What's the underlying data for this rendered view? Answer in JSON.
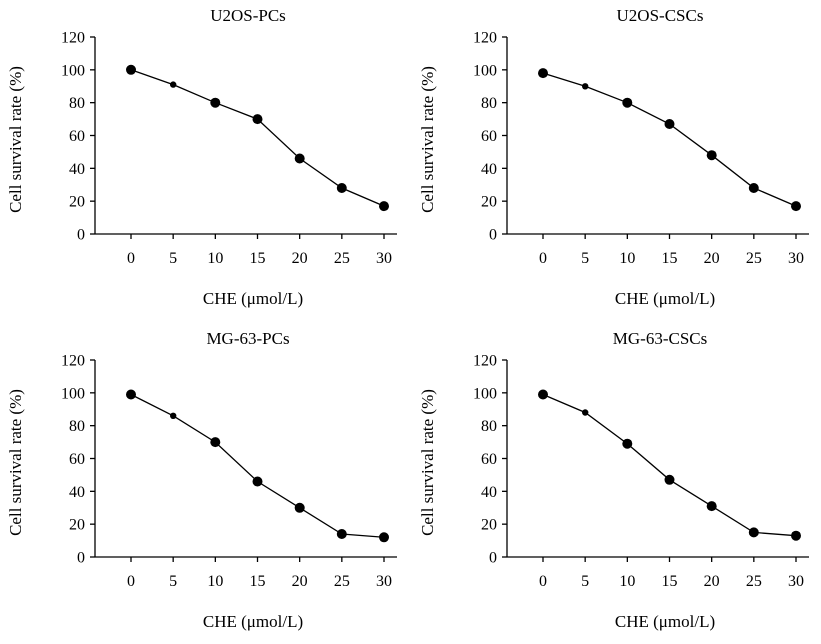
{
  "colors": {
    "line": "#000000",
    "marker": "#000000",
    "background": "#ffffff"
  },
  "chart_data": [
    {
      "type": "line",
      "title": "U2OS-PCs",
      "xlabel": "CHE (μmol/L)",
      "ylabel": "Cell survival rate (%)",
      "x": [
        0,
        5,
        10,
        15,
        20,
        25,
        30
      ],
      "x_ticks": [
        "0",
        "5",
        "10",
        "15",
        "20",
        "25",
        "30"
      ],
      "y": [
        100,
        91,
        80,
        70,
        46,
        28,
        17
      ],
      "y_ticks": [
        "0",
        "20",
        "40",
        "60",
        "80",
        "100",
        "120"
      ],
      "ylim": [
        0,
        120
      ],
      "grid": false
    },
    {
      "type": "line",
      "title": "U2OS-CSCs",
      "xlabel": "CHE (μmol/L)",
      "ylabel": "Cell survival rate (%)",
      "x": [
        0,
        5,
        10,
        15,
        20,
        25,
        30
      ],
      "x_ticks": [
        "0",
        "5",
        "10",
        "15",
        "20",
        "25",
        "30"
      ],
      "y": [
        98,
        90,
        80,
        67,
        48,
        28,
        17
      ],
      "y_ticks": [
        "0",
        "20",
        "40",
        "60",
        "80",
        "100",
        "120"
      ],
      "ylim": [
        0,
        120
      ],
      "grid": false
    },
    {
      "type": "line",
      "title": "MG-63-PCs",
      "xlabel": "CHE (μmol/L)",
      "ylabel": "Cell survival rate (%)",
      "x": [
        0,
        5,
        10,
        15,
        20,
        25,
        30
      ],
      "x_ticks": [
        "0",
        "5",
        "10",
        "15",
        "20",
        "25",
        "30"
      ],
      "y": [
        99,
        86,
        70,
        46,
        30,
        14,
        12
      ],
      "y_ticks": [
        "0",
        "20",
        "40",
        "60",
        "80",
        "100",
        "120"
      ],
      "ylim": [
        0,
        120
      ],
      "grid": false
    },
    {
      "type": "line",
      "title": "MG-63-CSCs",
      "xlabel": "CHE (μmol/L)",
      "ylabel": "Cell survival rate (%)",
      "x": [
        0,
        5,
        10,
        15,
        20,
        25,
        30
      ],
      "x_ticks": [
        "0",
        "5",
        "10",
        "15",
        "20",
        "25",
        "30"
      ],
      "y": [
        99,
        88,
        69,
        47,
        31,
        15,
        13
      ],
      "y_ticks": [
        "0",
        "20",
        "40",
        "60",
        "80",
        "100",
        "120"
      ],
      "ylim": [
        0,
        120
      ],
      "grid": false
    }
  ]
}
